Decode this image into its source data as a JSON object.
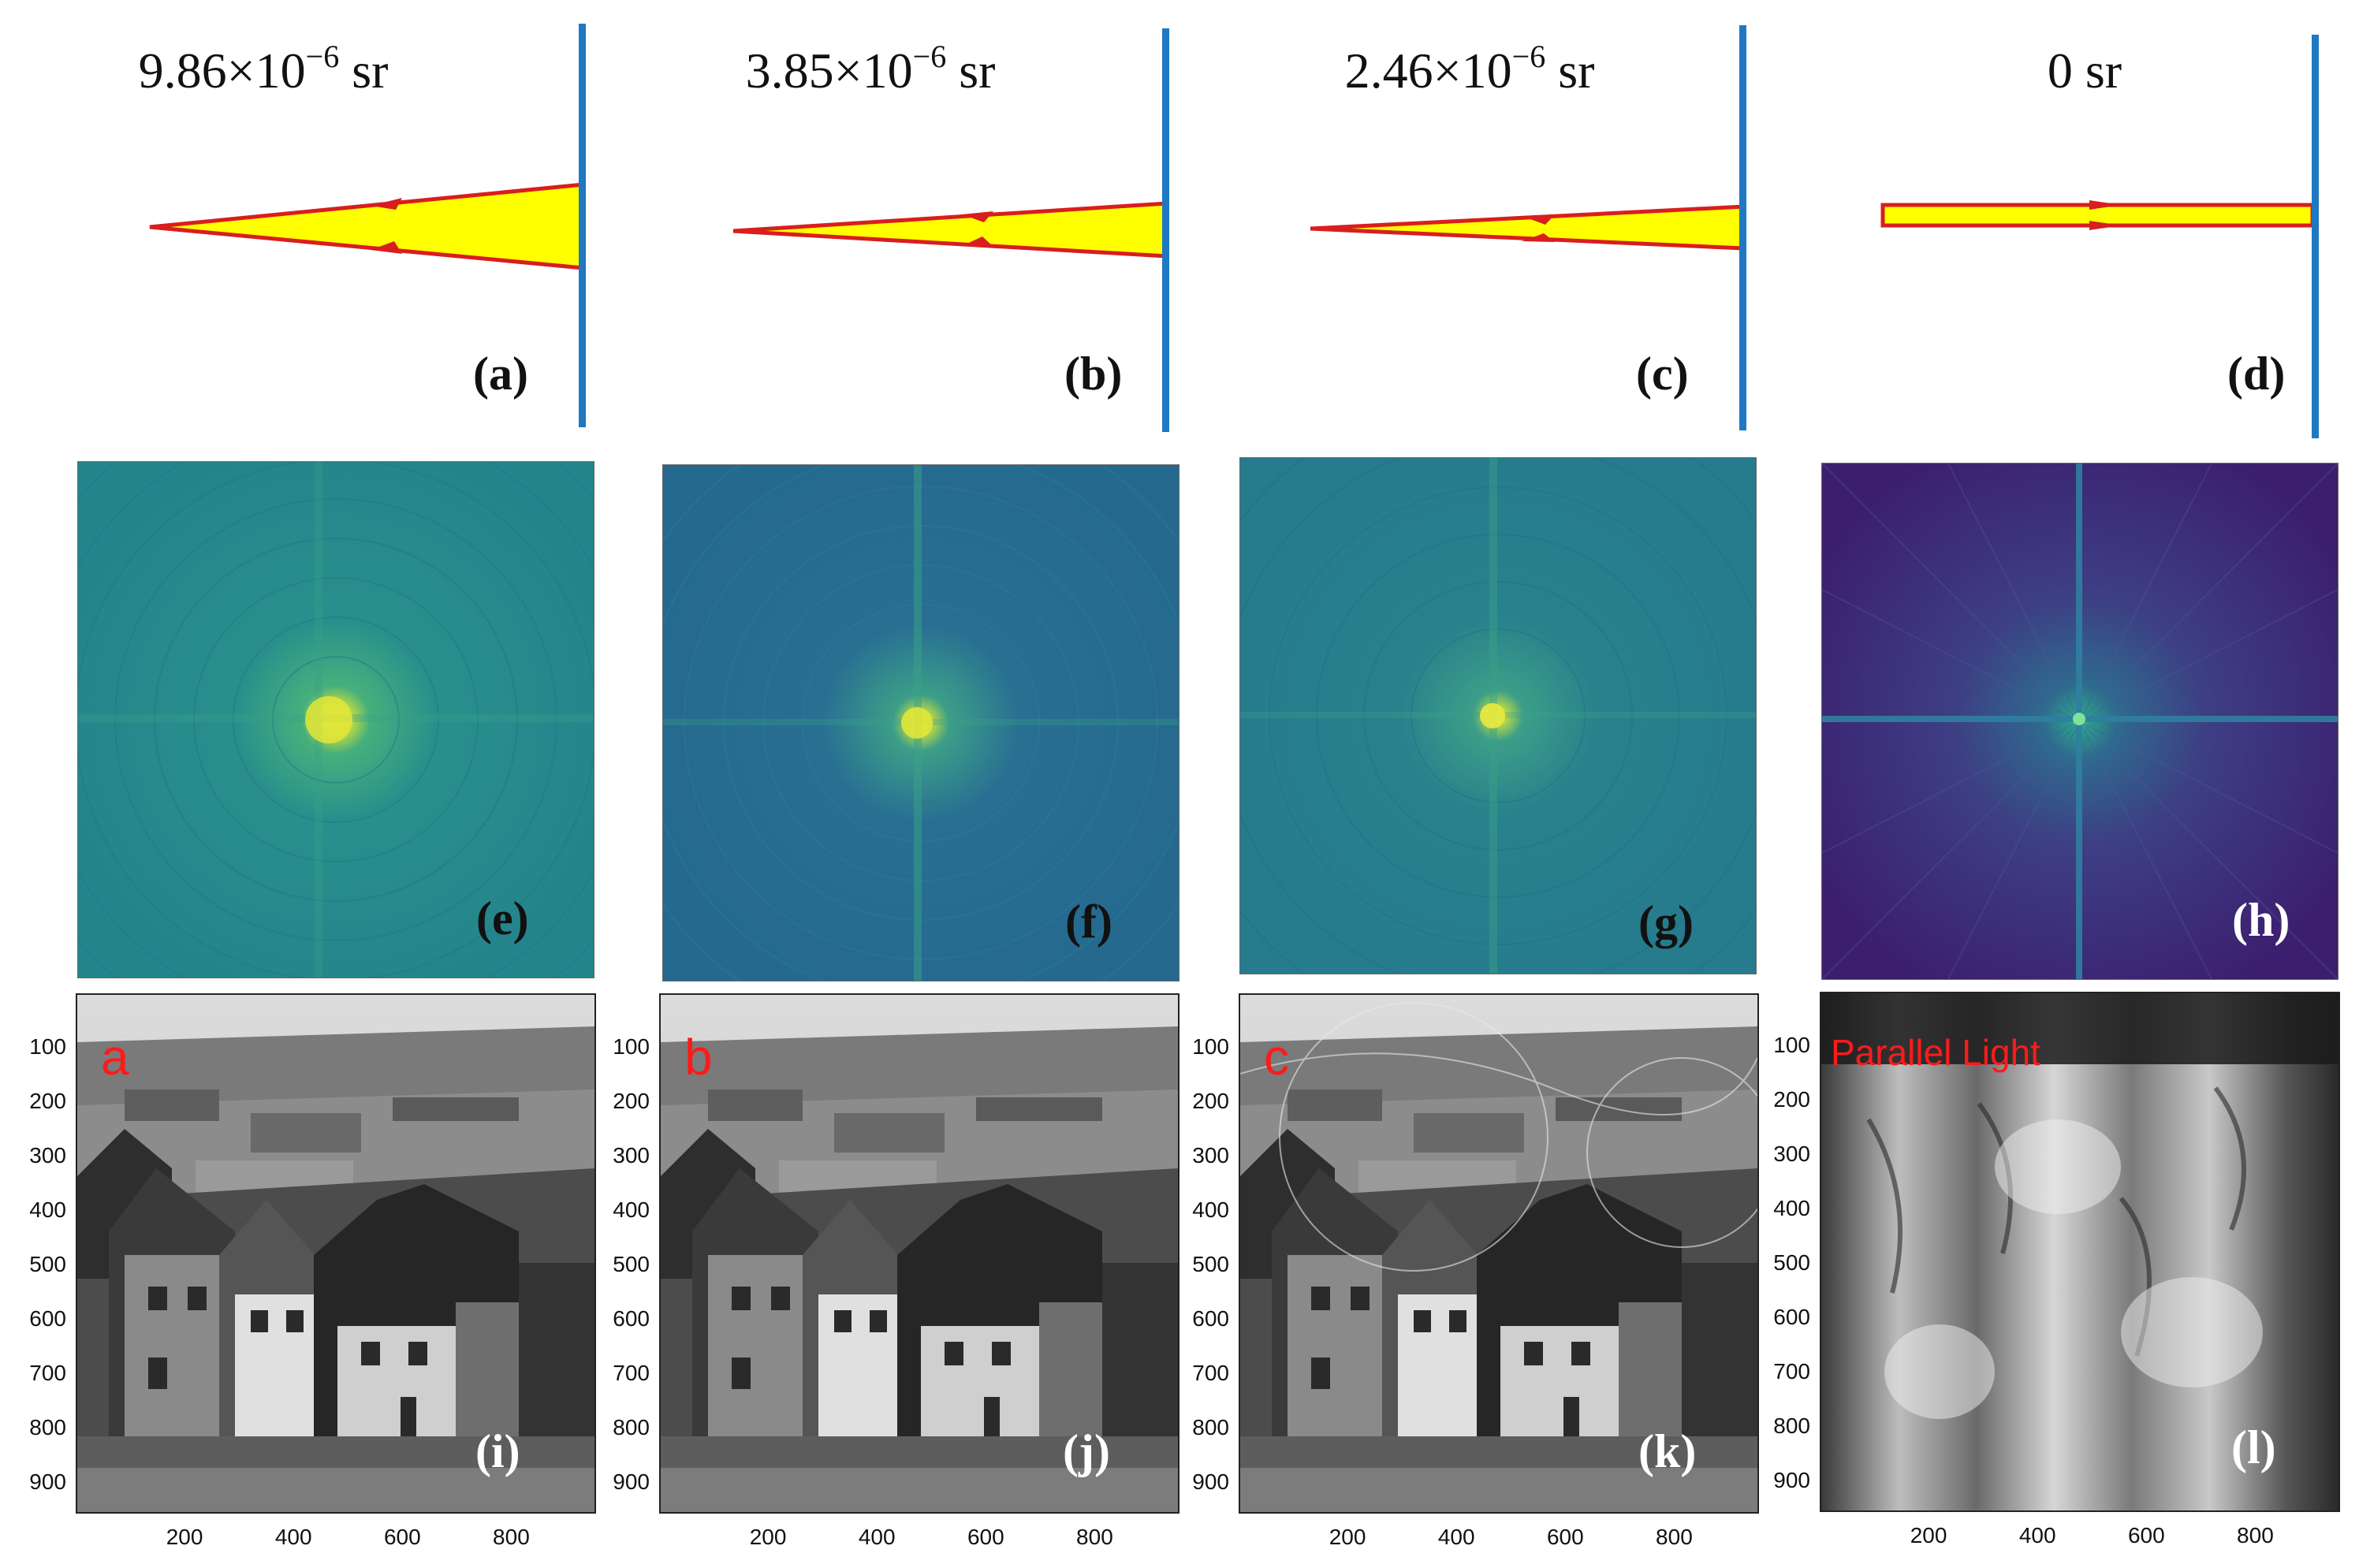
{
  "colors": {
    "ray_fill": "#ffff00",
    "ray_edge": "#d81e1e",
    "screen": "#1f78c1",
    "spec_teal": "#2b8a8c",
    "spec_purple": "#3c1e6e",
    "overlay_red": "#ff1a1a"
  },
  "diagrams": [
    {
      "solid_angle": {
        "mantissa": "9.86×10",
        "exp": "−6",
        "unit": " sr"
      },
      "label": "(a)"
    },
    {
      "solid_angle": {
        "mantissa": "3.85×10",
        "exp": "−6",
        "unit": " sr"
      },
      "label": "(b)"
    },
    {
      "solid_angle": {
        "mantissa": "2.46×10",
        "exp": "−6",
        "unit": " sr"
      },
      "label": "(c)"
    },
    {
      "solid_angle": {
        "mantissa": "0 sr",
        "exp": "",
        "unit": ""
      },
      "label": "(d)"
    }
  ],
  "spectra": [
    {
      "label": "(e)",
      "colormap": "teal"
    },
    {
      "label": "(f)",
      "colormap": "teal"
    },
    {
      "label": "(g)",
      "colormap": "teal"
    },
    {
      "label": "(h)",
      "colormap": "purple"
    }
  ],
  "reconstructions": [
    {
      "label": "(i)",
      "overlay": "a"
    },
    {
      "label": "(j)",
      "overlay": "b"
    },
    {
      "label": "(k)",
      "overlay": "c"
    },
    {
      "label": "(l)",
      "overlay": "Parallel Light"
    }
  ],
  "axes": {
    "yticks": [
      "100",
      "200",
      "300",
      "400",
      "500",
      "600",
      "700",
      "800",
      "900"
    ],
    "xticks": [
      "200",
      "400",
      "600",
      "800"
    ]
  }
}
